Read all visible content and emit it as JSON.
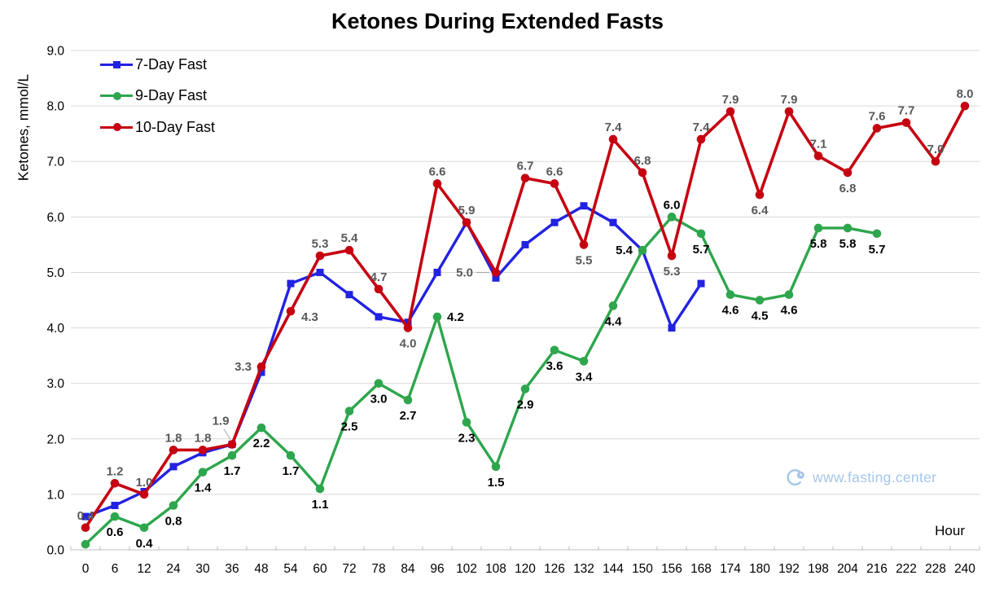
{
  "watermark": {
    "text": "www.fasting.center",
    "color": "#A5C6E8",
    "icon": "clock-c-logo"
  },
  "chart_data": {
    "type": "line",
    "title": "Ketones During Extended Fasts",
    "xlabel": "Hour",
    "ylabel": "Ketones, mmol/L",
    "ylim": [
      0,
      9
    ],
    "ytick_step": 1.0,
    "y_tick_labels": [
      "0.0",
      "1.0",
      "2.0",
      "3.0",
      "4.0",
      "5.0",
      "6.0",
      "7.0",
      "8.0",
      "9.0"
    ],
    "grid": true,
    "background": "#FFFFFF",
    "gridline_color": "#D9D9D9",
    "axis_line_color": "#BFBFBF",
    "legend_position": "top-left-inside",
    "categories": [
      0,
      6,
      12,
      24,
      30,
      36,
      48,
      54,
      60,
      72,
      78,
      84,
      96,
      102,
      108,
      120,
      126,
      132,
      144,
      150,
      156,
      168,
      174,
      180,
      192,
      198,
      204,
      216,
      222,
      228,
      240
    ],
    "series": [
      {
        "name": "7-Day Fast",
        "color": "#2222E2",
        "marker": "square",
        "values": [
          0.6,
          0.8,
          1.05,
          1.5,
          1.75,
          1.9,
          3.2,
          4.8,
          5.0,
          4.6,
          4.2,
          4.1,
          5.0,
          5.9,
          4.9,
          5.5,
          5.9,
          6.2,
          5.9,
          5.4,
          4.0,
          4.8
        ]
      },
      {
        "name": "9-Day Fast",
        "color": "#2EA64D",
        "marker": "circle",
        "values": [
          0.1,
          0.6,
          0.4,
          0.8,
          1.4,
          1.7,
          2.2,
          1.7,
          1.1,
          2.5,
          3.0,
          2.7,
          4.2,
          2.3,
          1.5,
          2.9,
          3.6,
          3.4,
          4.4,
          5.4,
          6.0,
          5.7,
          4.6,
          4.5,
          4.6,
          5.8,
          5.8,
          5.7
        ],
        "labels": [
          null,
          "0.6",
          "0.4",
          "0.8",
          "1.4",
          "1.7",
          "2.2",
          "1.7",
          "1.1",
          "2.5",
          "3.0",
          "2.7",
          "4.2",
          "2.3",
          "1.5",
          "2.9",
          "3.6",
          "3.4",
          "4.4",
          "5.4",
          "6.0",
          "5.7",
          "4.6",
          "4.5",
          "4.6",
          "5.8",
          "5.8",
          "5.7"
        ],
        "label_color": "#000000",
        "label_default_pos": "below",
        "label_pos_overrides": {
          "12": "right",
          "19": "left",
          "20": "above"
        }
      },
      {
        "name": "10-Day Fast",
        "color": "#C60010",
        "marker": "circle",
        "values": [
          0.4,
          1.2,
          1.0,
          1.8,
          1.8,
          1.9,
          3.3,
          4.3,
          5.3,
          5.4,
          4.7,
          4.0,
          6.6,
          5.9,
          5.0,
          6.7,
          6.6,
          5.5,
          7.4,
          6.8,
          5.3,
          7.4,
          7.9,
          6.4,
          7.9,
          7.1,
          6.8,
          7.6,
          7.7,
          7.0,
          8.0
        ],
        "labels": [
          "0.4",
          "1.2",
          "1.0",
          "1.8",
          "1.8",
          "1.9",
          "3.3",
          "4.3",
          "5.3",
          "5.4",
          "4.7",
          "4.0",
          "6.6",
          "5.9",
          "5.0",
          "6.7",
          "6.6",
          "5.5",
          "7.4",
          "6.8",
          "5.3",
          "7.4",
          "7.9",
          "6.4",
          "7.9",
          "7.1",
          "6.8",
          "7.6",
          "7.7",
          "7.0",
          "8.0"
        ],
        "label_color": "#595959",
        "label_default_pos": "above",
        "label_pos_overrides": {
          "5": "leader-above-left",
          "6": "left",
          "7": "below-right",
          "11": "below",
          "14": "leader-left",
          "17": "below",
          "20": "below",
          "23": "below",
          "26": "below"
        }
      }
    ]
  }
}
